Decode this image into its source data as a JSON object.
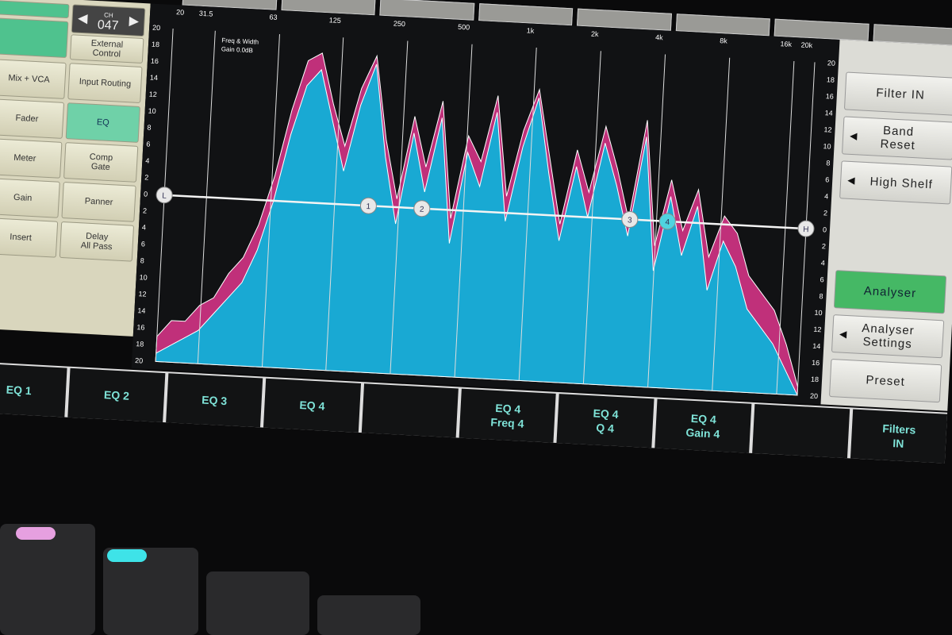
{
  "channel": {
    "label": "CH",
    "number": "047"
  },
  "left_panel": {
    "external_control": "External\nControl",
    "buttons": [
      "Mix + VCA",
      "Input Routing",
      "Fader",
      "EQ",
      "Meter",
      "Comp\nGate",
      "Gain",
      "Panner",
      "Delay\nAll Pass",
      "Insert"
    ]
  },
  "graph": {
    "freq_labels": [
      "20",
      "31.5",
      "63",
      "125",
      "250",
      "500",
      "1k",
      "2k",
      "4k",
      "8k",
      "16k",
      "20k"
    ],
    "info": [
      "Freq & Width",
      "Gain 0.0dB"
    ],
    "db_labels": [
      "20",
      "18",
      "16",
      "14",
      "12",
      "10",
      "8",
      "6",
      "4",
      "2",
      "0",
      "2",
      "4",
      "6",
      "8",
      "10",
      "12",
      "14",
      "16",
      "18",
      "20"
    ],
    "eq_nodes": [
      {
        "label": "L",
        "freq": 20,
        "gain": 0
      },
      {
        "label": "1",
        "freq": 180,
        "gain": 0
      },
      {
        "label": "2",
        "freq": 320,
        "gain": 0
      },
      {
        "label": "3",
        "freq": 3000,
        "gain": 0
      },
      {
        "label": "4",
        "freq": 4500,
        "gain": 0,
        "selected": true
      },
      {
        "label": "H",
        "freq": 20000,
        "gain": 0
      }
    ],
    "spectrum_color": "#19a9d3",
    "peak_color": "#c0307a",
    "selected_node_color": "#4fd4e0",
    "spectrum_db": [
      -19,
      -18,
      -17,
      -16,
      -14,
      -12,
      -10,
      -6,
      0,
      8,
      14,
      16,
      10,
      4,
      12,
      17,
      6,
      -2,
      9,
      2,
      11,
      -4,
      7,
      3,
      12,
      -1,
      8,
      14,
      5,
      -3,
      6,
      0,
      9,
      4,
      -2,
      10,
      -6,
      3,
      -4,
      2,
      -8,
      -2,
      -5,
      -10,
      -12,
      -14,
      -17,
      -20
    ],
    "peak_db": [
      -17,
      -15,
      -15,
      -13,
      -12,
      -9,
      -7,
      -3,
      3,
      11,
      17,
      18,
      12,
      7,
      14,
      18,
      8,
      1,
      11,
      5,
      13,
      -1,
      9,
      6,
      14,
      2,
      10,
      15,
      7,
      -1,
      8,
      3,
      11,
      6,
      0,
      12,
      -3,
      5,
      -1,
      4,
      -4,
      1,
      -1,
      -6,
      -8,
      -10,
      -14,
      -19
    ]
  },
  "right_panel": {
    "filter_in": "Filter IN",
    "band_reset": "Band\nReset",
    "high_shelf": "High Shelf",
    "analyser": "Analyser",
    "analyser_settings": "Analyser\nSettings",
    "preset": "Preset"
  },
  "softkeys": [
    "EQ 1",
    "EQ 2",
    "EQ 3",
    "EQ 4",
    "",
    "EQ 4\nFreq 4",
    "EQ 4\nQ 4",
    "EQ 4\nGain 4",
    "",
    "Filters\nIN"
  ]
}
